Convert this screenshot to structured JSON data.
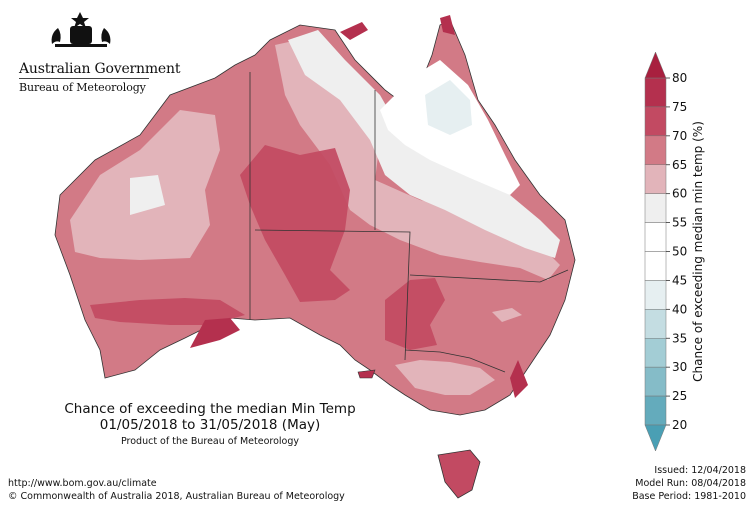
{
  "logo": {
    "org_name": "Australian Government",
    "dept_name": "Bureau of Meteorology"
  },
  "map": {
    "title_line1": "Chance of exceeding the median Min Temp",
    "title_line2": "01/05/2018 to 31/05/2018 (May)",
    "product_credit": "Product of the Bureau of Meteorology"
  },
  "colorbar": {
    "title": "Chance of exceeding median min temp (%)",
    "ticks": [
      "80",
      "75",
      "70",
      "65",
      "60",
      "55",
      "50",
      "45",
      "40",
      "35",
      "30",
      "25",
      "20"
    ],
    "colors": {
      "75-80": "#b4304e",
      "70-75": "#c24a62",
      "65-70": "#d27a86",
      "60-65": "#e2b4ba",
      "55-60": "#efefef",
      "50-55": "#ffffff",
      "45-50": "#ffffff",
      "40-45": "#e6eff1",
      "35-40": "#c4dde2",
      "30-35": "#a3cdd5",
      "25-30": "#85bcc8",
      "20-25": "#64abbc"
    }
  },
  "footer": {
    "url": "http://www.bom.gov.au/climate",
    "copyright": "© Commonwealth of Australia 2018, Australian Bureau of Meteorology",
    "issued": "Issued: 12/04/2018",
    "model_run": "Model Run: 08/04/2018",
    "base_period": "Base Period: 1981-2010"
  }
}
